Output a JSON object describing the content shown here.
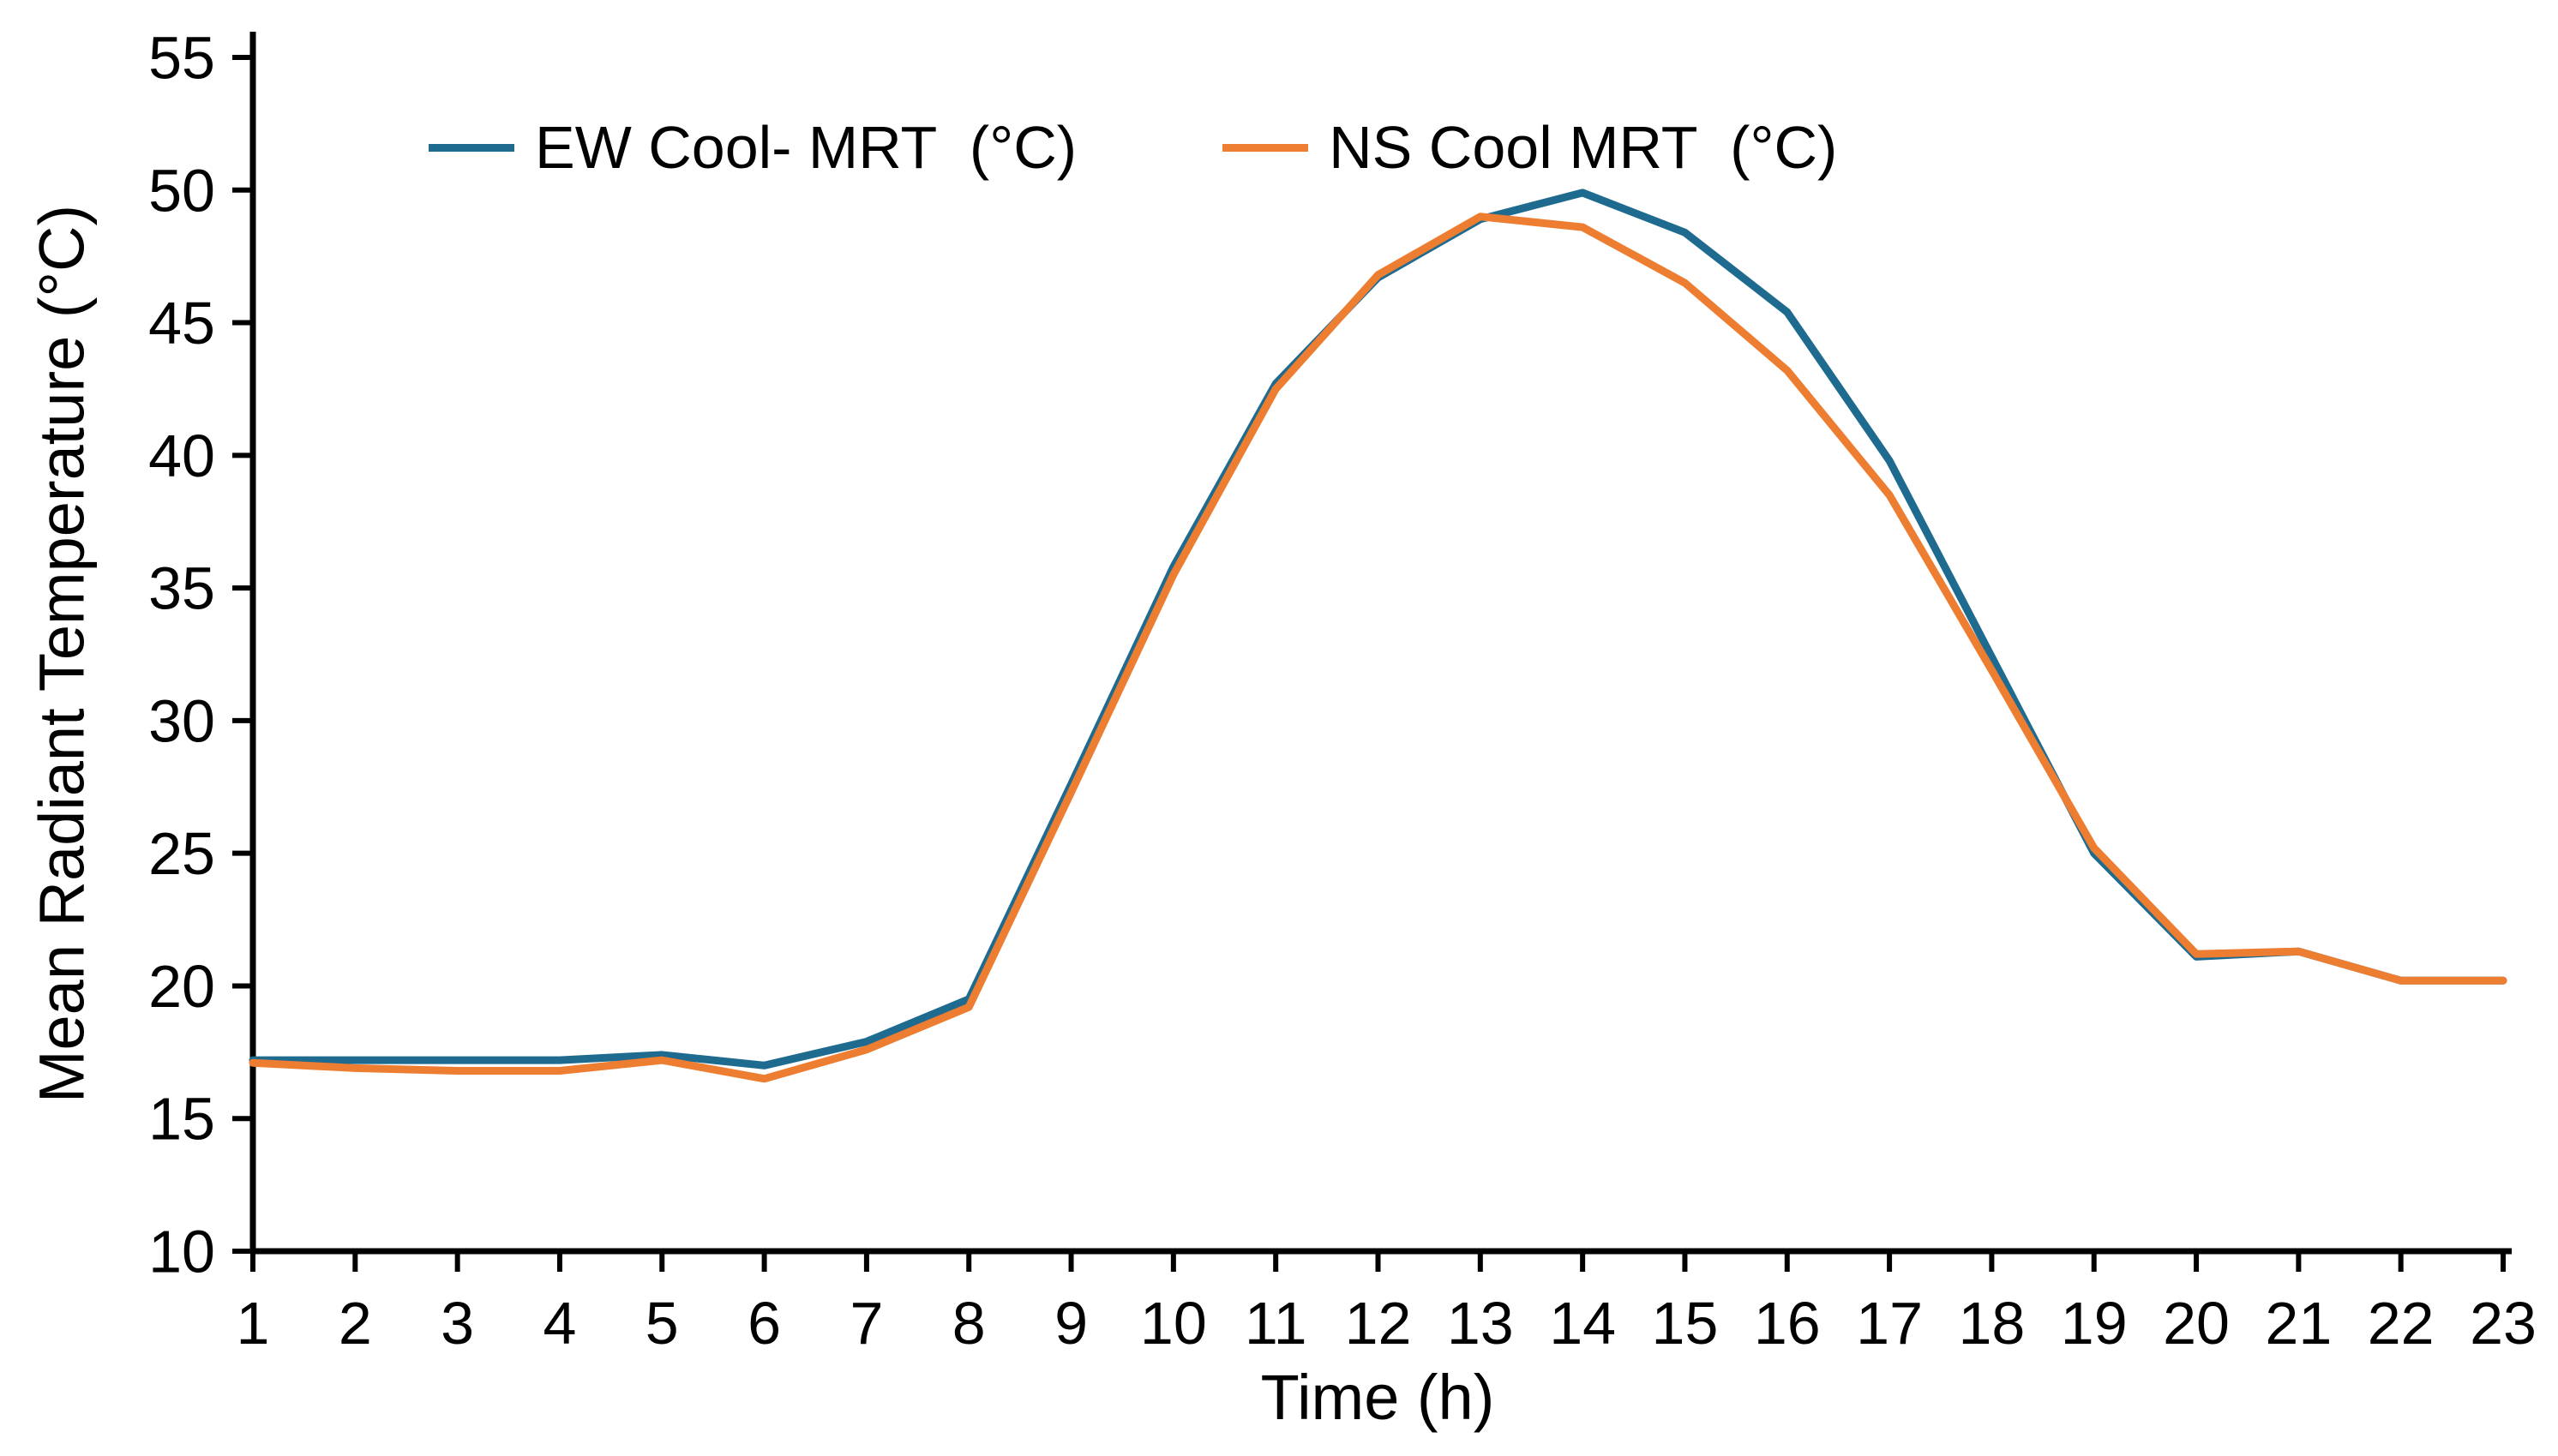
{
  "figure": {
    "background": "#ffffff",
    "axis_color": "#000000"
  },
  "chart_data": {
    "type": "line",
    "title": "",
    "xlabel": "Time (h)",
    "ylabel": "Mean Radiant Temperature (°C)",
    "xlim": [
      1,
      23
    ],
    "ylim": [
      10,
      55
    ],
    "grid": false,
    "legend_position": "top-inside",
    "x": [
      1,
      2,
      3,
      4,
      5,
      6,
      7,
      8,
      9,
      10,
      11,
      12,
      13,
      14,
      15,
      16,
      17,
      18,
      19,
      20,
      21,
      22,
      23
    ],
    "x_ticks": [
      1,
      2,
      3,
      4,
      5,
      6,
      7,
      8,
      9,
      10,
      11,
      12,
      13,
      14,
      15,
      16,
      17,
      18,
      19,
      20,
      21,
      22,
      23
    ],
    "y_ticks": [
      10,
      15,
      20,
      25,
      30,
      35,
      40,
      45,
      50,
      55
    ],
    "series": [
      {
        "name": "EW Cool- MRT  (°C)",
        "color": "#1f6b8f",
        "values": [
          17.2,
          17.2,
          17.2,
          17.2,
          17.4,
          17.0,
          17.9,
          19.5,
          27.6,
          35.8,
          42.7,
          46.7,
          48.9,
          49.9,
          48.4,
          45.4,
          39.8,
          32.4,
          25.0,
          21.1,
          21.3,
          20.2,
          20.2
        ]
      },
      {
        "name": "NS Cool MRT  (°C)",
        "color": "#ed7d31",
        "values": [
          17.1,
          16.9,
          16.8,
          16.8,
          17.2,
          16.5,
          17.6,
          19.2,
          27.3,
          35.5,
          42.5,
          46.8,
          49.0,
          48.6,
          46.5,
          43.2,
          38.5,
          31.9,
          25.2,
          21.2,
          21.3,
          20.2,
          20.2
        ]
      }
    ]
  }
}
